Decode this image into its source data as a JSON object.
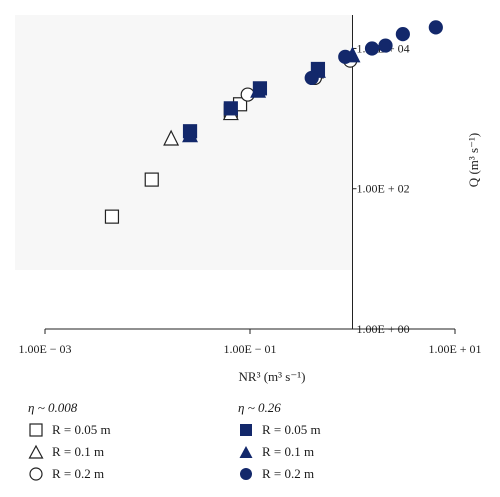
{
  "chart_data": {
    "type": "scatter",
    "x_scale": "log",
    "y_scale": "log",
    "xlim": [
      0.001,
      10
    ],
    "ylim": [
      1,
      30000
    ],
    "x_ticks": [
      {
        "value": 0.001,
        "label": "1.00E − 03"
      },
      {
        "value": 0.1,
        "label": "1.00E − 01"
      },
      {
        "value": 10,
        "label": "1.00E + 01"
      }
    ],
    "y_ticks": [
      {
        "value": 1,
        "label": "1.00E + 00"
      },
      {
        "value": 100,
        "label": "1.00E + 02"
      },
      {
        "value": 10000,
        "label": "1.00E + 04"
      }
    ],
    "xlabel": "NR³ (m³ s⁻¹)",
    "ylabel": "Q (m³ s⁻¹)",
    "legend_groups": [
      {
        "title": "η ~ 0.008",
        "fill": "open"
      },
      {
        "title": "η ~ 0.26",
        "fill": "filled"
      }
    ],
    "series": [
      {
        "name": "R = 0.05 m",
        "group": "η ~ 0.008",
        "marker": "square",
        "fill": "open",
        "points": [
          [
            0.0045,
            40
          ],
          [
            0.011,
            135
          ],
          [
            0.065,
            1300
          ],
          [
            0.08,
            1600
          ]
        ]
      },
      {
        "name": "R = 0.1 m",
        "group": "η ~ 0.008",
        "marker": "triangle",
        "fill": "open",
        "points": [
          [
            0.017,
            520
          ],
          [
            0.065,
            1200
          ],
          [
            0.44,
            4700
          ]
        ]
      },
      {
        "name": "R = 0.2 m",
        "group": "η ~ 0.008",
        "marker": "circle",
        "fill": "open",
        "points": [
          [
            0.095,
            2200
          ],
          [
            0.43,
            3800
          ],
          [
            0.95,
            6700
          ]
        ]
      },
      {
        "name": "R = 0.05 m",
        "group": "η ~ 0.26",
        "marker": "square",
        "fill": "filled",
        "points": [
          [
            0.026,
            660
          ],
          [
            0.065,
            1400
          ],
          [
            0.125,
            2700
          ],
          [
            0.46,
            5100
          ]
        ]
      },
      {
        "name": "R = 0.1 m",
        "group": "η ~ 0.26",
        "marker": "triangle",
        "fill": "filled",
        "points": [
          [
            0.026,
            580
          ],
          [
            0.12,
            2500
          ],
          [
            0.46,
            4800
          ],
          [
            1.0,
            8000
          ]
        ]
      },
      {
        "name": "R = 0.2 m",
        "group": "η ~ 0.26",
        "marker": "circle",
        "fill": "filled",
        "points": [
          [
            0.4,
            3800
          ],
          [
            0.85,
            7600
          ],
          [
            1.55,
            10000
          ],
          [
            2.1,
            11000
          ],
          [
            3.1,
            16000
          ],
          [
            6.5,
            20000
          ]
        ]
      }
    ],
    "colors": {
      "filled": "#13286b",
      "open_stroke": "#222222",
      "axis": "#222222"
    }
  }
}
